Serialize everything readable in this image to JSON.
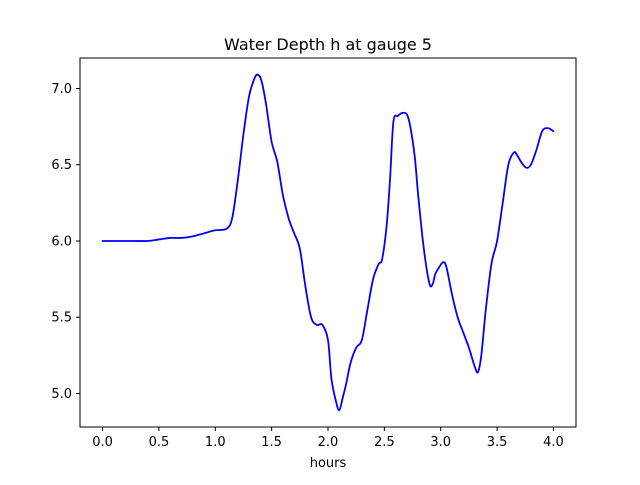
{
  "chart_data": {
    "type": "line",
    "title": "Water Depth h at gauge 5",
    "xlabel": "hours",
    "ylabel": "",
    "xlim": [
      -0.2,
      4.2
    ],
    "ylim": [
      4.78,
      7.2
    ],
    "grid": false,
    "x_ticks": [
      0.0,
      0.5,
      1.0,
      1.5,
      2.0,
      2.5,
      3.0,
      3.5,
      4.0
    ],
    "x_tick_labels": [
      "0.0",
      "0.5",
      "1.0",
      "1.5",
      "2.0",
      "2.5",
      "3.0",
      "3.5",
      "4.0"
    ],
    "y_ticks": [
      5.0,
      5.5,
      6.0,
      6.5,
      7.0
    ],
    "y_tick_labels": [
      "5.0",
      "5.5",
      "6.0",
      "6.5",
      "7.0"
    ],
    "series": [
      {
        "color": "#0000ff",
        "x": [
          0.0,
          0.2,
          0.4,
          0.5,
          0.6,
          0.7,
          0.8,
          0.9,
          1.0,
          1.1,
          1.15,
          1.2,
          1.25,
          1.3,
          1.35,
          1.38,
          1.41,
          1.45,
          1.5,
          1.55,
          1.6,
          1.65,
          1.7,
          1.75,
          1.8,
          1.85,
          1.9,
          1.95,
          2.0,
          2.03,
          2.07,
          2.1,
          2.13,
          2.16,
          2.2,
          2.25,
          2.3,
          2.35,
          2.4,
          2.45,
          2.48,
          2.52,
          2.55,
          2.58,
          2.62,
          2.66,
          2.7,
          2.73,
          2.77,
          2.8,
          2.85,
          2.9,
          2.93,
          2.95,
          2.98,
          3.02,
          3.05,
          3.1,
          3.15,
          3.2,
          3.25,
          3.3,
          3.33,
          3.36,
          3.4,
          3.45,
          3.5,
          3.55,
          3.6,
          3.65,
          3.68,
          3.72,
          3.76,
          3.8,
          3.85,
          3.9,
          3.95,
          4.0
        ],
        "y": [
          6.0,
          6.0,
          6.0,
          6.01,
          6.02,
          6.02,
          6.03,
          6.05,
          6.07,
          6.08,
          6.15,
          6.4,
          6.7,
          6.95,
          7.07,
          7.09,
          7.05,
          6.9,
          6.65,
          6.52,
          6.3,
          6.15,
          6.05,
          5.95,
          5.7,
          5.5,
          5.45,
          5.45,
          5.35,
          5.1,
          4.95,
          4.89,
          4.97,
          5.06,
          5.2,
          5.3,
          5.35,
          5.55,
          5.75,
          5.85,
          5.88,
          6.1,
          6.4,
          6.78,
          6.82,
          6.84,
          6.83,
          6.75,
          6.55,
          6.3,
          5.95,
          5.72,
          5.72,
          5.78,
          5.82,
          5.86,
          5.83,
          5.65,
          5.5,
          5.4,
          5.3,
          5.18,
          5.14,
          5.25,
          5.55,
          5.85,
          6.0,
          6.25,
          6.5,
          6.58,
          6.56,
          6.51,
          6.48,
          6.5,
          6.6,
          6.72,
          6.74,
          6.72
        ]
      }
    ]
  }
}
